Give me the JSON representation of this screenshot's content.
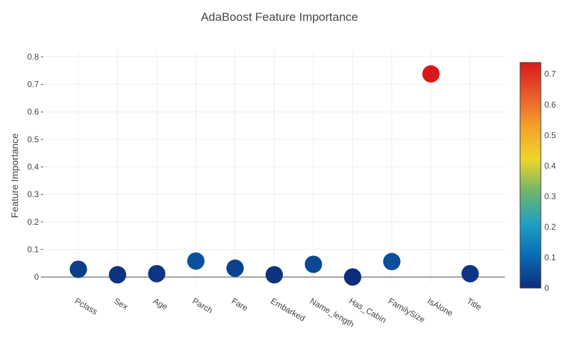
{
  "chart_data": {
    "type": "scatter",
    "title": "AdaBoost Feature Importance",
    "xlabel": "",
    "ylabel": "Feature Importance",
    "categories": [
      "Pclass",
      "Sex",
      "Age",
      "Parch",
      "Fare",
      "Embarked",
      "Name_length",
      "Has_Cabin",
      "FamilySize",
      "IsAlone",
      "Title"
    ],
    "values": [
      0.028,
      0.008,
      0.012,
      0.058,
      0.032,
      0.008,
      0.046,
      0.0,
      0.056,
      0.738,
      0.012
    ],
    "ylim": [
      -0.02,
      0.82
    ],
    "yticks": [
      0,
      0.1,
      0.2,
      0.3,
      0.4,
      0.5,
      0.6,
      0.7,
      0.8
    ],
    "ytick_labels": [
      "0",
      "0.1",
      "0.2",
      "0.3",
      "0.4",
      "0.5",
      "0.6",
      "0.7",
      "0.8"
    ],
    "grid": true,
    "colorbar": {
      "range": [
        0,
        0.738
      ],
      "ticks": [
        0,
        0.1,
        0.2,
        0.3,
        0.4,
        0.5,
        0.6,
        0.7
      ],
      "tick_labels": [
        "0",
        "0.1",
        "0.2",
        "0.3",
        "0.4",
        "0.5",
        "0.6",
        "0.7"
      ],
      "colorscale": [
        "#0d2e7d",
        "#0a6bb5",
        "#1fa0c4",
        "#6fb56a",
        "#f0d52a",
        "#f2a22c",
        "#e95b2b",
        "#d7191c"
      ]
    }
  }
}
